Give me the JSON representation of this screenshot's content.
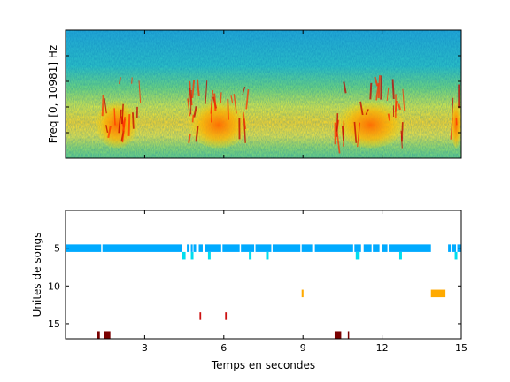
{
  "chart_data": [
    {
      "type": "heatmap",
      "ylabel": "Freq [0, 10981] Hz",
      "xlim": [
        0,
        15
      ],
      "colormap": "jet",
      "note_bursts_s": [
        [
          1.1,
          2.8
        ],
        [
          4.6,
          7.0
        ],
        [
          10.2,
          12.9
        ],
        [
          14.6,
          15.0
        ]
      ],
      "grid": false
    },
    {
      "type": "scatter",
      "xlabel": "Temps en secondes",
      "ylabel": "Unites de songs",
      "xlim": [
        0,
        15
      ],
      "ylim": [
        17,
        0
      ],
      "xticks": [
        3,
        6,
        9,
        12,
        15
      ],
      "yticks": [
        5,
        10,
        15
      ],
      "grid": false,
      "series": [
        {
          "unit": 5,
          "color": "#00aaff",
          "segments": [
            [
              0,
              1.35
            ],
            [
              1.4,
              4.4
            ],
            [
              4.6,
              4.7
            ],
            [
              4.75,
              4.82
            ],
            [
              4.85,
              4.95
            ],
            [
              5.05,
              5.2
            ],
            [
              5.3,
              5.9
            ],
            [
              5.95,
              6.6
            ],
            [
              6.65,
              7.15
            ],
            [
              7.2,
              7.8
            ],
            [
              7.85,
              8.9
            ],
            [
              8.95,
              9.35
            ],
            [
              9.45,
              10.9
            ],
            [
              10.95,
              11.2
            ],
            [
              11.3,
              11.6
            ],
            [
              11.65,
              11.9
            ],
            [
              12.0,
              12.2
            ],
            [
              12.25,
              13.85
            ],
            [
              14.5,
              14.6
            ],
            [
              14.65,
              14.8
            ],
            [
              14.85,
              15.0
            ]
          ]
        },
        {
          "unit": 6,
          "color": "#00ddee",
          "segments": [
            [
              4.4,
              4.55
            ],
            [
              4.75,
              4.85
            ],
            [
              5.4,
              5.5
            ],
            [
              6.95,
              7.05
            ],
            [
              7.6,
              7.7
            ],
            [
              11.0,
              11.15
            ],
            [
              12.65,
              12.75
            ],
            [
              14.75,
              14.85
            ]
          ]
        },
        {
          "unit": 11,
          "color": "#ffaa00",
          "segments": [
            [
              8.95,
              9.02
            ],
            [
              13.85,
              14.4
            ]
          ]
        },
        {
          "unit": 14,
          "color": "#cc1111",
          "segments": [
            [
              5.08,
              5.14
            ],
            [
              6.05,
              6.11
            ]
          ]
        },
        {
          "unit": 16.5,
          "color": "#7a0000",
          "segments": [
            [
              1.2,
              1.3
            ],
            [
              1.45,
              1.7
            ],
            [
              10.2,
              10.45
            ],
            [
              10.7,
              10.75
            ]
          ]
        }
      ]
    }
  ]
}
